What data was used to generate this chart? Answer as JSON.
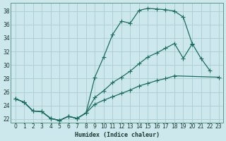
{
  "xlabel": "Humidex (Indice chaleur)",
  "bg_color": "#cce8ec",
  "grid_color": "#aaccd4",
  "line_color": "#1a6e60",
  "xlim": [
    -0.5,
    23.5
  ],
  "ylim": [
    21.5,
    39.2
  ],
  "yticks": [
    22,
    24,
    26,
    28,
    30,
    32,
    34,
    36,
    38
  ],
  "xtick_labels": [
    "0",
    "1",
    "2",
    "3",
    "4",
    "5",
    "6",
    "7",
    "8",
    "9",
    "10",
    "11",
    "12",
    "13",
    "14",
    "15",
    "16",
    "17",
    "18",
    "19",
    "20",
    "21",
    "22",
    "23"
  ],
  "curve_top_x": [
    0,
    1,
    2,
    3,
    4,
    5,
    6,
    7,
    8,
    9,
    10,
    11,
    12,
    13,
    14,
    15,
    16,
    17,
    18,
    19,
    20,
    21,
    22
  ],
  "curve_top_y": [
    25.0,
    24.5,
    23.2,
    23.1,
    22.1,
    21.8,
    22.4,
    22.1,
    22.9,
    28.2,
    31.2,
    34.5,
    36.5,
    36.2,
    38.1,
    38.4,
    38.3,
    38.2,
    38.0,
    37.1,
    33.2,
    31.0,
    29.2
  ],
  "curve_mid_x": [
    0,
    1,
    2,
    3,
    4,
    5,
    6,
    7,
    8,
    9,
    10,
    11,
    12,
    13,
    14,
    15,
    16,
    17,
    18,
    19,
    20
  ],
  "curve_mid_y": [
    25.0,
    24.5,
    23.2,
    23.1,
    22.1,
    21.8,
    22.4,
    22.1,
    22.9,
    25.2,
    26.2,
    27.4,
    28.2,
    29.1,
    30.2,
    31.2,
    31.8,
    32.5,
    33.2,
    31.0,
    33.1
  ],
  "curve_bot_x": [
    0,
    1,
    2,
    3,
    4,
    5,
    6,
    7,
    8,
    9,
    10,
    11,
    12,
    13,
    14,
    15,
    16,
    17,
    18,
    23
  ],
  "curve_bot_y": [
    25.0,
    24.5,
    23.2,
    23.1,
    22.1,
    21.8,
    22.4,
    22.1,
    22.9,
    24.2,
    24.8,
    25.3,
    25.8,
    26.3,
    26.9,
    27.3,
    27.7,
    28.0,
    28.4,
    28.2
  ]
}
